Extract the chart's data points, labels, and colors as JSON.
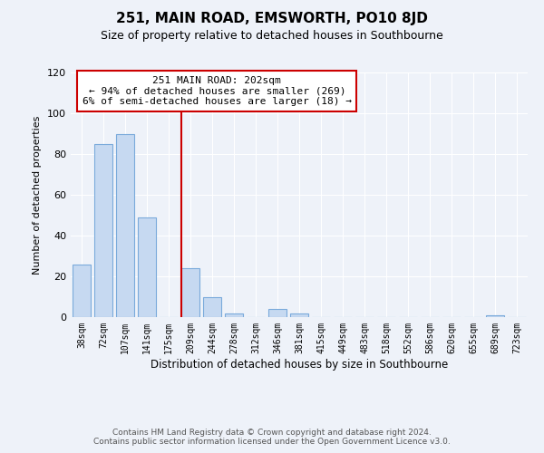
{
  "title": "251, MAIN ROAD, EMSWORTH, PO10 8JD",
  "subtitle": "Size of property relative to detached houses in Southbourne",
  "xlabel": "Distribution of detached houses by size in Southbourne",
  "ylabel": "Number of detached properties",
  "bin_labels": [
    "38sqm",
    "72sqm",
    "107sqm",
    "141sqm",
    "175sqm",
    "209sqm",
    "244sqm",
    "278sqm",
    "312sqm",
    "346sqm",
    "381sqm",
    "415sqm",
    "449sqm",
    "483sqm",
    "518sqm",
    "552sqm",
    "586sqm",
    "620sqm",
    "655sqm",
    "689sqm",
    "723sqm"
  ],
  "bar_values": [
    26,
    85,
    90,
    49,
    0,
    24,
    10,
    2,
    0,
    4,
    2,
    0,
    0,
    0,
    0,
    0,
    0,
    0,
    0,
    1,
    0
  ],
  "bar_color": "#c6d9f1",
  "bar_edge_color": "#7aaadb",
  "vline_color": "#cc0000",
  "annotation_text": "251 MAIN ROAD: 202sqm\n← 94% of detached houses are smaller (269)\n6% of semi-detached houses are larger (18) →",
  "annotation_box_color": "#ffffff",
  "annotation_box_edge": "#cc0000",
  "ylim": [
    0,
    120
  ],
  "yticks": [
    0,
    20,
    40,
    60,
    80,
    100,
    120
  ],
  "footer_line1": "Contains HM Land Registry data © Crown copyright and database right 2024.",
  "footer_line2": "Contains public sector information licensed under the Open Government Licence v3.0.",
  "bg_color": "#eef2f9",
  "grid_color": "#ffffff",
  "title_fontsize": 11,
  "subtitle_fontsize": 9,
  "annotation_fontsize": 8,
  "tick_fontsize": 7,
  "ylabel_fontsize": 8,
  "xlabel_fontsize": 8.5,
  "footer_fontsize": 6.5
}
